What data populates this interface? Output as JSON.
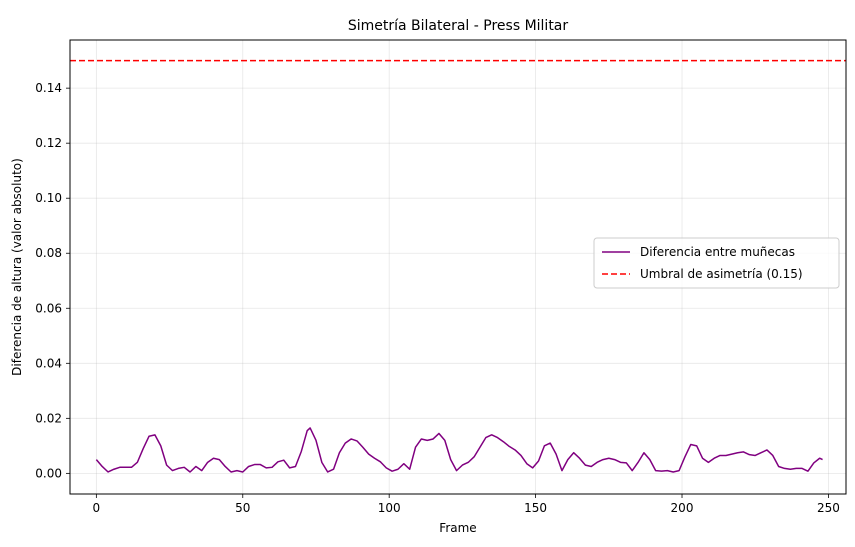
{
  "chart_data": {
    "type": "line",
    "title": "Simetría Bilateral - Press Militar",
    "xlabel": "Frame",
    "ylabel": "Diferencia de altura (valor absoluto)",
    "xlim": [
      -9,
      256
    ],
    "ylim": [
      -0.0075,
      0.1575
    ],
    "xticks": [
      0,
      50,
      100,
      150,
      200,
      250
    ],
    "yticks": [
      0.0,
      0.02,
      0.04,
      0.06,
      0.08,
      0.1,
      0.12,
      0.14
    ],
    "ytick_labels": [
      "0.00",
      "0.02",
      "0.04",
      "0.06",
      "0.08",
      "0.10",
      "0.12",
      "0.14"
    ],
    "grid": true,
    "legend_position": "center-right",
    "series": [
      {
        "name": "Diferencia entre muñecas",
        "color": "#800080",
        "line_style": "solid",
        "x": [
          0,
          2,
          4,
          6,
          8,
          10,
          12,
          14,
          16,
          18,
          20,
          22,
          24,
          26,
          28,
          30,
          32,
          34,
          36,
          38,
          40,
          42,
          44,
          46,
          48,
          50,
          52,
          54,
          56,
          58,
          60,
          62,
          64,
          66,
          68,
          70,
          72,
          73,
          75,
          77,
          79,
          81,
          83,
          85,
          87,
          89,
          91,
          93,
          95,
          97,
          99,
          101,
          103,
          105,
          107,
          109,
          111,
          113,
          115,
          117,
          119,
          121,
          123,
          125,
          127,
          129,
          131,
          133,
          135,
          137,
          139,
          141,
          143,
          145,
          147,
          149,
          151,
          153,
          155,
          157,
          159,
          161,
          163,
          165,
          167,
          169,
          171,
          173,
          175,
          177,
          179,
          181,
          183,
          185,
          187,
          189,
          191,
          193,
          195,
          197,
          199,
          201,
          203,
          205,
          207,
          209,
          211,
          213,
          215,
          217,
          219,
          221,
          223,
          225,
          227,
          229,
          231,
          233,
          235,
          237,
          239,
          241,
          243,
          245,
          247,
          248
        ],
        "y": [
          0.005,
          0.0025,
          0.0005,
          0.0015,
          0.0022,
          0.0022,
          0.0022,
          0.004,
          0.009,
          0.0135,
          0.014,
          0.01,
          0.003,
          0.001,
          0.0018,
          0.0022,
          0.0005,
          0.0025,
          0.001,
          0.004,
          0.0055,
          0.005,
          0.0025,
          0.0005,
          0.001,
          0.0005,
          0.0025,
          0.0032,
          0.0032,
          0.002,
          0.0022,
          0.0042,
          0.0048,
          0.002,
          0.0025,
          0.008,
          0.0155,
          0.0165,
          0.012,
          0.004,
          0.0005,
          0.0015,
          0.0075,
          0.011,
          0.0125,
          0.0118,
          0.0095,
          0.007,
          0.0055,
          0.0042,
          0.002,
          0.0008,
          0.0015,
          0.0035,
          0.0015,
          0.0095,
          0.0125,
          0.012,
          0.0125,
          0.0145,
          0.012,
          0.005,
          0.001,
          0.003,
          0.004,
          0.006,
          0.0095,
          0.013,
          0.014,
          0.013,
          0.0115,
          0.0098,
          0.0085,
          0.0065,
          0.0035,
          0.002,
          0.0045,
          0.01,
          0.011,
          0.007,
          0.001,
          0.005,
          0.0075,
          0.0055,
          0.003,
          0.0025,
          0.004,
          0.005,
          0.0055,
          0.005,
          0.004,
          0.0038,
          0.001,
          0.004,
          0.0075,
          0.005,
          0.001,
          0.0008,
          0.001,
          0.0005,
          0.001,
          0.006,
          0.0105,
          0.01,
          0.0055,
          0.004,
          0.0055,
          0.0065,
          0.0065,
          0.007,
          0.0075,
          0.0078,
          0.0068,
          0.0065,
          0.0075,
          0.0085,
          0.0065,
          0.0025,
          0.0018,
          0.0015,
          0.0018,
          0.0018,
          0.0008,
          0.0038,
          0.0055,
          0.005
        ]
      },
      {
        "name": "Umbral de asimetría (0.15)",
        "color": "#ff0000",
        "line_style": "dashed",
        "type": "hline",
        "value": 0.15
      }
    ]
  }
}
